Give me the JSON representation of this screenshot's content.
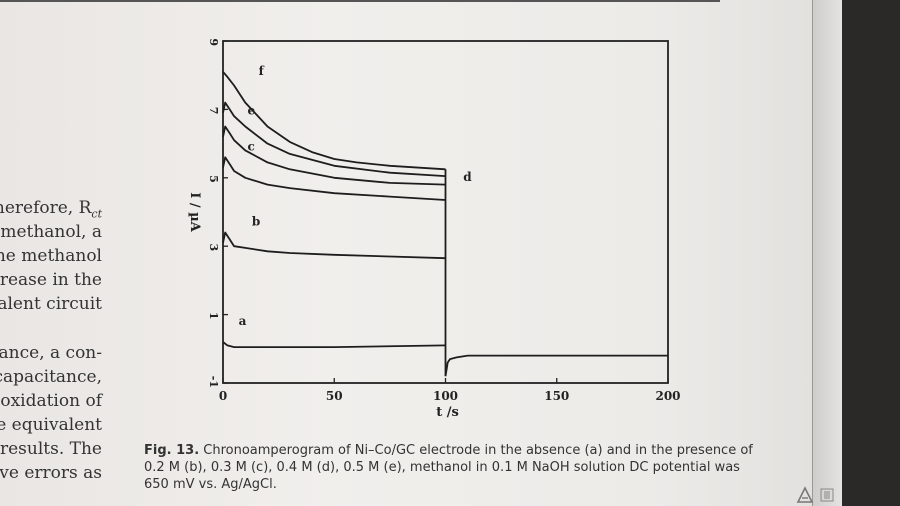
{
  "left_text": [
    "herefore, R",
    "methanol, a",
    "he methanol",
    "rease in the",
    "alent circuit",
    "tance, a con-",
    "capacitance,",
    "oxidation of",
    "e equivalent",
    "results. The",
    "ive errors as"
  ],
  "left_text_sub": "ct",
  "caption": {
    "label": "Fig. 13.",
    "text": "Chronoamperogram of Ni–Co/GC electrode in the absence (a) and in the presence of 0.2 M (b), 0.3 M (c), 0.4 M (d), 0.5 M (e), methanol in 0.1 M NaOH solution DC potential was 650 mV vs. Ag/AgCl."
  },
  "chart_data": {
    "type": "line",
    "xlabel": "t /s",
    "ylabel": "I / µA",
    "xlim": [
      0,
      200
    ],
    "ylim": [
      -1,
      9
    ],
    "x_ticks": [
      0,
      50,
      100,
      150,
      200
    ],
    "y_ticks": [
      -1,
      1,
      3,
      5,
      7,
      9
    ],
    "grid": false,
    "series": [
      {
        "name": "a",
        "x": [
          0,
          2,
          5,
          10,
          20,
          50,
          100
        ],
        "y": [
          0.2,
          0.1,
          0.05,
          0.05,
          0.05,
          0.05,
          0.1
        ]
      },
      {
        "name": "b",
        "x": [
          0,
          1,
          3,
          5,
          10,
          20,
          30,
          50,
          75,
          100
        ],
        "y": [
          3.1,
          3.4,
          3.2,
          3.0,
          2.95,
          2.85,
          2.8,
          2.75,
          2.7,
          2.65
        ]
      },
      {
        "name": "c",
        "x": [
          0,
          1,
          3,
          5,
          10,
          20,
          30,
          50,
          75,
          100
        ],
        "y": [
          5.3,
          5.6,
          5.4,
          5.2,
          5.0,
          4.8,
          4.7,
          4.55,
          4.45,
          4.35
        ]
      },
      {
        "name": "d",
        "x": [
          0,
          1,
          3,
          5,
          10,
          20,
          30,
          50,
          75,
          100
        ],
        "y": [
          6.2,
          6.5,
          6.3,
          6.1,
          5.8,
          5.45,
          5.25,
          5.0,
          4.85,
          4.8
        ]
      },
      {
        "name": "e",
        "x": [
          0,
          1,
          3,
          5,
          10,
          20,
          30,
          50,
          75,
          100
        ],
        "y": [
          6.9,
          7.2,
          7.0,
          6.8,
          6.5,
          6.0,
          5.7,
          5.35,
          5.15,
          5.05
        ]
      },
      {
        "name": "f",
        "x": [
          0,
          2,
          5,
          10,
          15,
          20,
          30,
          40,
          50,
          60,
          75,
          100
        ],
        "y": [
          8.1,
          7.95,
          7.7,
          7.2,
          6.85,
          6.5,
          6.05,
          5.75,
          5.55,
          5.45,
          5.35,
          5.25
        ]
      },
      {
        "name": "",
        "x": [
          100,
          101,
          102,
          105,
          110,
          150,
          200
        ],
        "y": [
          -0.8,
          -0.4,
          -0.3,
          -0.25,
          -0.2,
          -0.2,
          -0.2
        ]
      }
    ],
    "annotations": [
      "a",
      "b",
      "c",
      "d",
      "e",
      "f"
    ]
  }
}
